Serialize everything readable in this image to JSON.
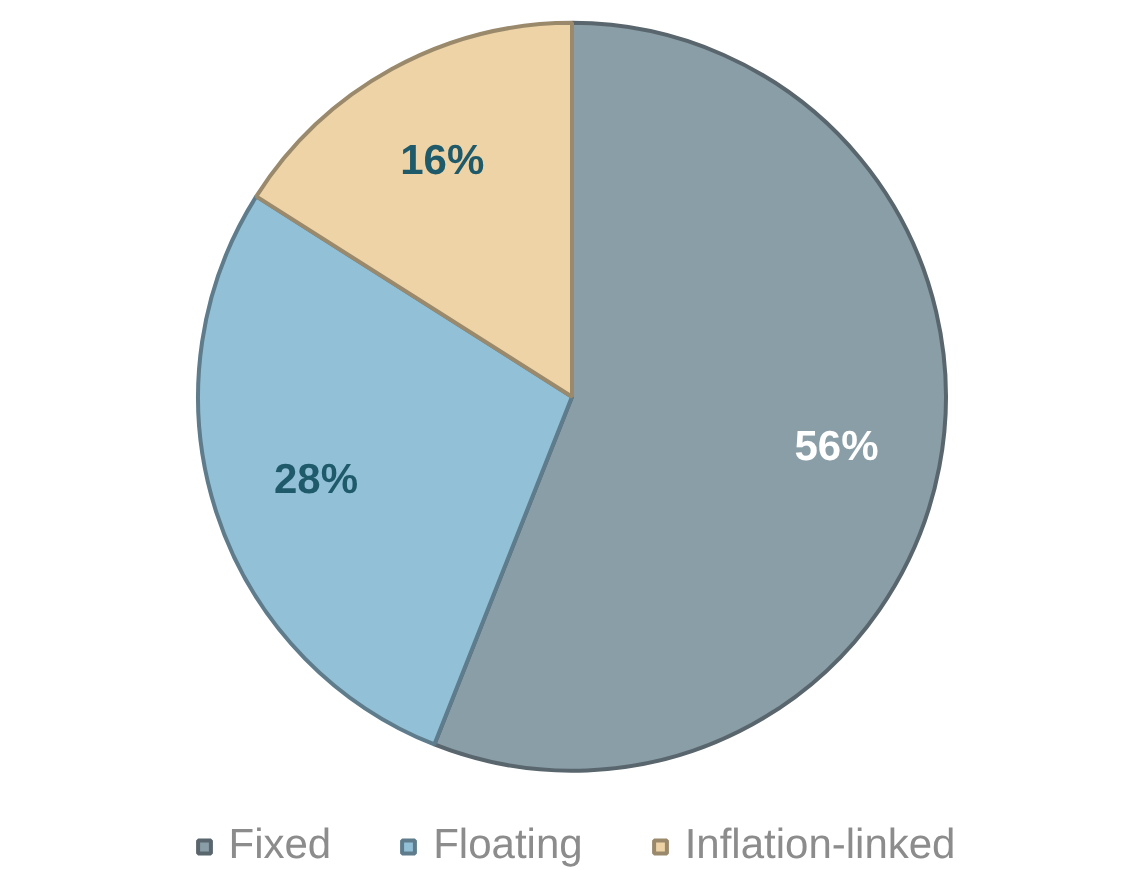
{
  "chart_data": {
    "type": "pie",
    "categories": [
      "Fixed",
      "Floating",
      "Inflation-linked"
    ],
    "values": [
      56,
      28,
      16
    ],
    "colors": [
      "#8a9ea8",
      "#92c0d6",
      "#edd3a5"
    ],
    "value_labels": [
      "56%",
      "28%",
      "16%"
    ],
    "legend": "bottom"
  }
}
